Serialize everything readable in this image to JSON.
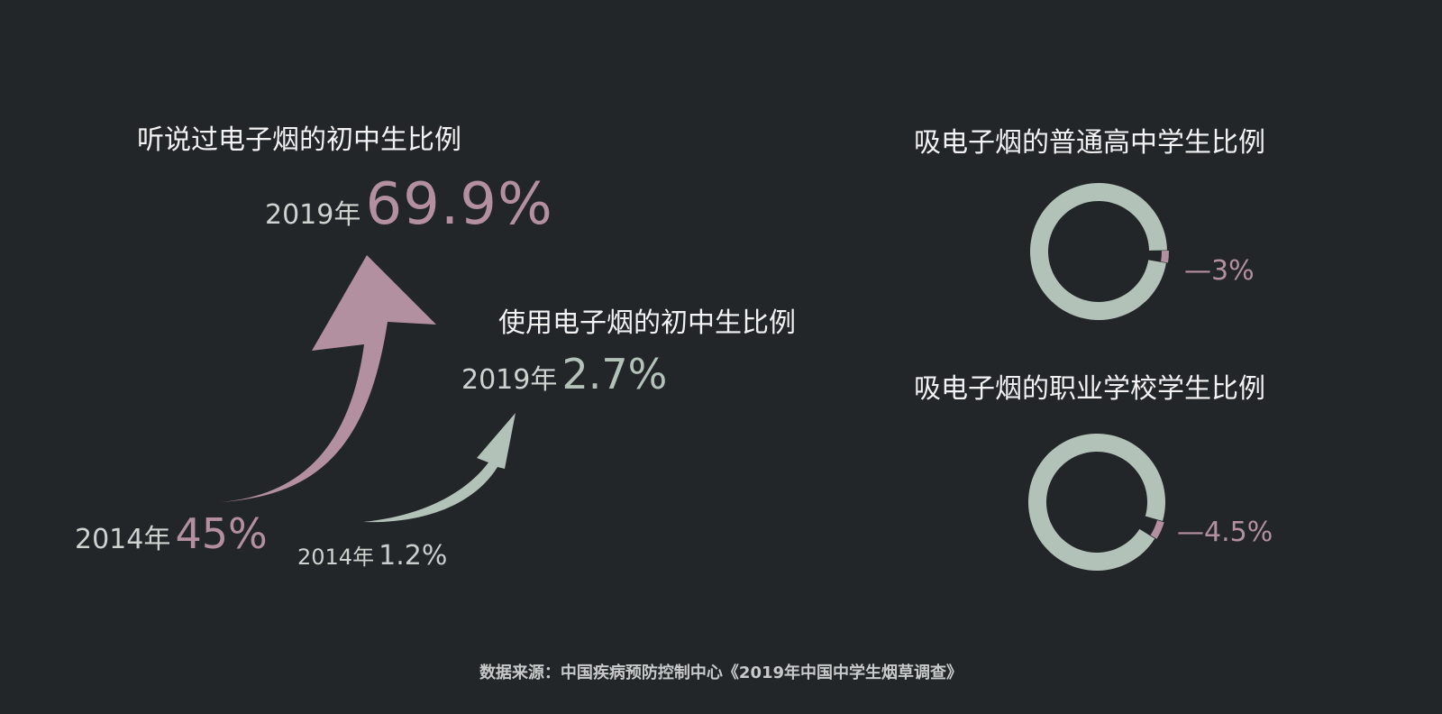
{
  "heard": {
    "title": "听说过电子烟的初中生比例",
    "year_2019": "2019年",
    "value_2019_label": "69.9%",
    "year_2014": "2014年",
    "value_2014_label": "45%"
  },
  "used": {
    "title": "使用电子烟的初中生比例",
    "year_2019": "2019年",
    "value_2019_label": "2.7%",
    "year_2014": "2014年",
    "value_2014_label": "1.2%"
  },
  "high_school": {
    "title": "吸电子烟的普通高中学生比例",
    "label": "—3%"
  },
  "vocational": {
    "title": "吸电子烟的职业学校学生比例",
    "label": "—4.5%"
  },
  "source": "数据来源：中国疾病预防控制中心《2019年中国中学生烟草调查》",
  "colors": {
    "background": "#232629",
    "pink": "#b3909f",
    "green": "#b3c2b8"
  },
  "chart_data": [
    {
      "type": "line",
      "series": [
        {
          "name": "听说过电子烟的初中生比例",
          "x": [
            "2014年",
            "2019年"
          ],
          "values": [
            45,
            69.9
          ]
        },
        {
          "name": "使用电子烟的初中生比例",
          "x": [
            "2014年",
            "2019年"
          ],
          "values": [
            1.2,
            2.7
          ]
        }
      ]
    },
    {
      "type": "pie",
      "title": "吸电子烟的普通高中学生比例",
      "values": [
        3,
        97
      ]
    },
    {
      "type": "pie",
      "title": "吸电子烟的职业学校学生比例",
      "values": [
        4.5,
        95.5
      ]
    }
  ]
}
